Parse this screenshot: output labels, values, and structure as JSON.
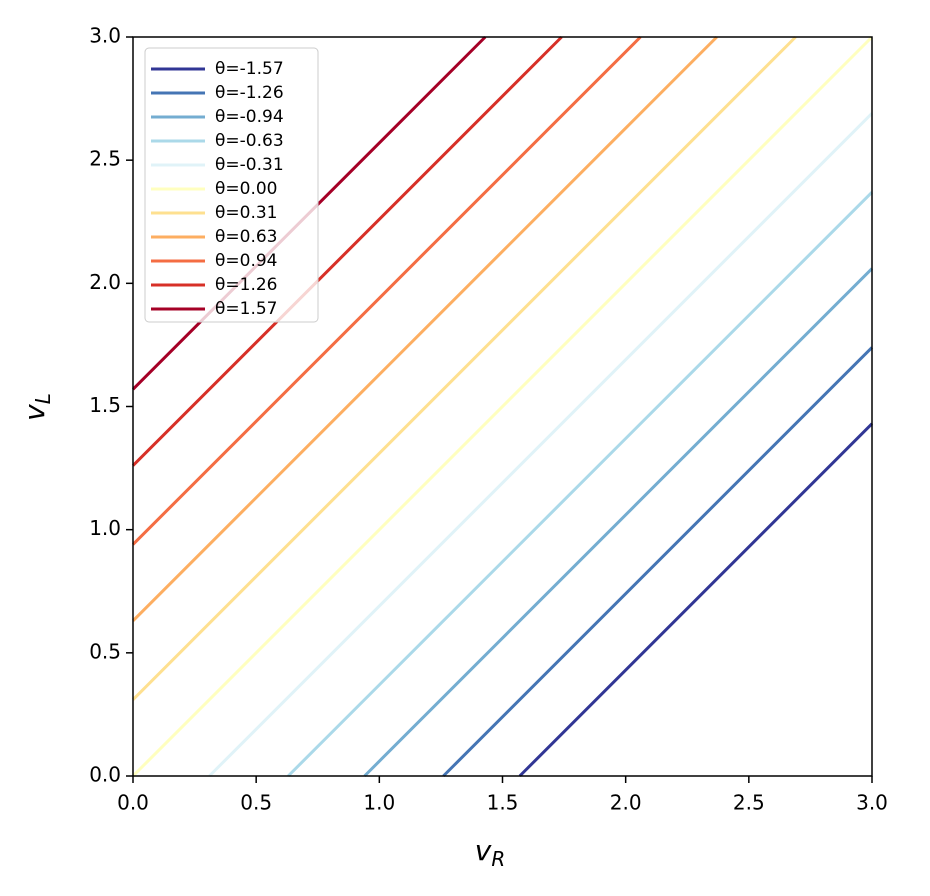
{
  "chart_data": {
    "type": "line",
    "xlabel": {
      "base": "v",
      "sub": "R"
    },
    "ylabel": {
      "base": "v",
      "sub": "L"
    },
    "xlim": [
      0,
      3
    ],
    "ylim": [
      0,
      3
    ],
    "xticks": [
      {
        "value": 0,
        "label": "0.0"
      },
      {
        "value": 0.5,
        "label": "0.5"
      },
      {
        "value": 1,
        "label": "1.0"
      },
      {
        "value": 1.5,
        "label": "1.5"
      },
      {
        "value": 2,
        "label": "2.0"
      },
      {
        "value": 2.5,
        "label": "2.5"
      },
      {
        "value": 3,
        "label": "3.0"
      }
    ],
    "yticks": [
      {
        "value": 0,
        "label": "0.0"
      },
      {
        "value": 0.5,
        "label": "0.5"
      },
      {
        "value": 1,
        "label": "1.0"
      },
      {
        "value": 1.5,
        "label": "1.5"
      },
      {
        "value": 2,
        "label": "2.0"
      },
      {
        "value": 2.5,
        "label": "2.5"
      },
      {
        "value": 3,
        "label": "3.0"
      }
    ],
    "grid": false,
    "legend_position": "upper-left",
    "series": [
      {
        "name": "θ=-1.57",
        "color": "#313695",
        "x": [
          1.57,
          3
        ],
        "values": [
          0,
          1.43
        ]
      },
      {
        "name": "θ=-1.26",
        "color": "#4575b4",
        "x": [
          1.26,
          3
        ],
        "values": [
          0,
          1.74
        ]
      },
      {
        "name": "θ=-0.94",
        "color": "#74add1",
        "x": [
          0.94,
          3
        ],
        "values": [
          0,
          2.06
        ]
      },
      {
        "name": "θ=-0.63",
        "color": "#abd9e9",
        "x": [
          0.63,
          3
        ],
        "values": [
          0,
          2.37
        ]
      },
      {
        "name": "θ=-0.31",
        "color": "#e0f3f8",
        "x": [
          0.31,
          3
        ],
        "values": [
          0,
          2.69
        ]
      },
      {
        "name": "θ=0.00",
        "color": "#ffffbf",
        "x": [
          0,
          3
        ],
        "values": [
          0,
          3
        ]
      },
      {
        "name": "θ=0.31",
        "color": "#fee090",
        "x": [
          0,
          2.69
        ],
        "values": [
          0.31,
          3
        ]
      },
      {
        "name": "θ=0.63",
        "color": "#fdae61",
        "x": [
          0,
          2.37
        ],
        "values": [
          0.63,
          3
        ]
      },
      {
        "name": "θ=0.94",
        "color": "#f46d43",
        "x": [
          0,
          2.06
        ],
        "values": [
          0.94,
          3
        ]
      },
      {
        "name": "θ=1.26",
        "color": "#d73027",
        "x": [
          0,
          1.74
        ],
        "values": [
          1.26,
          3
        ]
      },
      {
        "name": "θ=1.57",
        "color": "#a50026",
        "x": [
          0,
          1.43
        ],
        "values": [
          1.57,
          3
        ]
      }
    ]
  }
}
